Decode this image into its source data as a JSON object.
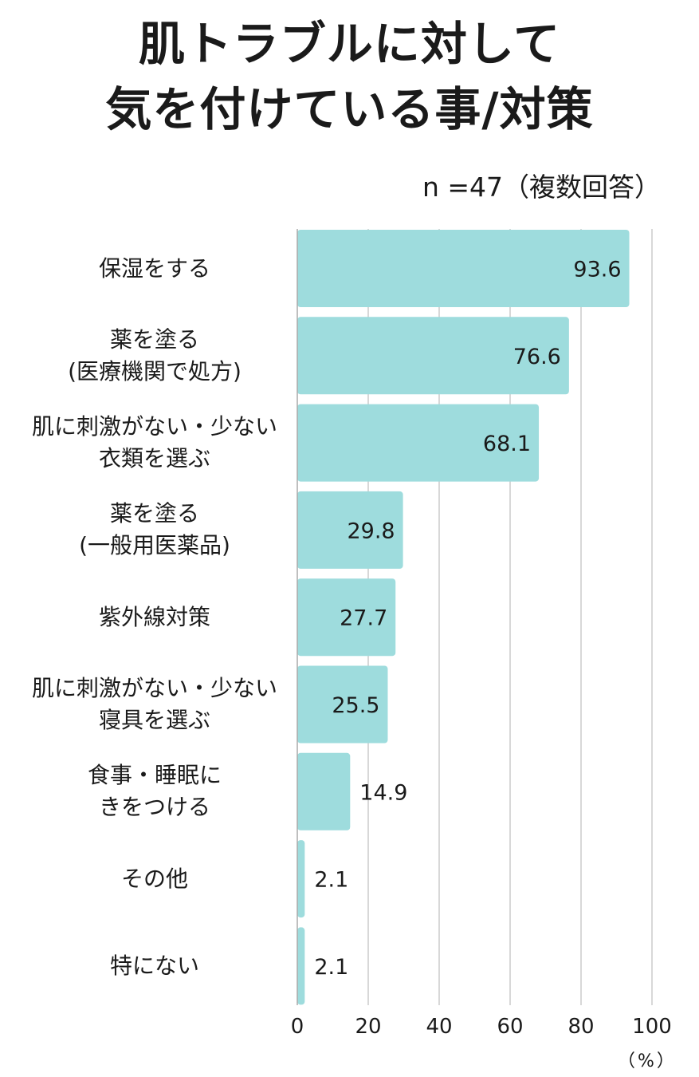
{
  "chart_data": {
    "type": "bar",
    "orientation": "horizontal",
    "title": [
      "肌トラブルに対して",
      "気を付けている事/対策"
    ],
    "sample_note": "n =47（複数回答）",
    "categories": [
      [
        "保湿をする"
      ],
      [
        "薬を塗る",
        "(医療機関で処方)"
      ],
      [
        "肌に刺激がない・少ない",
        "衣類を選ぶ"
      ],
      [
        "薬を塗る",
        "(一般用医薬品)"
      ],
      [
        "紫外線対策"
      ],
      [
        "肌に刺激がない・少ない",
        "寝具を選ぶ"
      ],
      [
        "食事・睡眠に",
        "きをつける"
      ],
      [
        "その他"
      ],
      [
        "特にない"
      ]
    ],
    "values": [
      93.6,
      76.6,
      68.1,
      29.8,
      27.7,
      25.5,
      14.9,
      2.1,
      2.1
    ],
    "value_labels": [
      "93.6",
      "76.6",
      "68.1",
      "29.8",
      "27.7",
      "25.5",
      "14.9",
      "2.1",
      "2.1"
    ],
    "xlim": [
      0,
      100
    ],
    "xticks": [
      0,
      20,
      40,
      60,
      80,
      100
    ],
    "xtick_labels": [
      "0",
      "20",
      "40",
      "60",
      "80",
      "100"
    ],
    "unit_label": "（%）",
    "grid": true,
    "colors": {
      "bar": "#9edcdd",
      "grid": "#cccccc",
      "axis": "#aaaaaa",
      "text": "#1a1a1a"
    }
  }
}
